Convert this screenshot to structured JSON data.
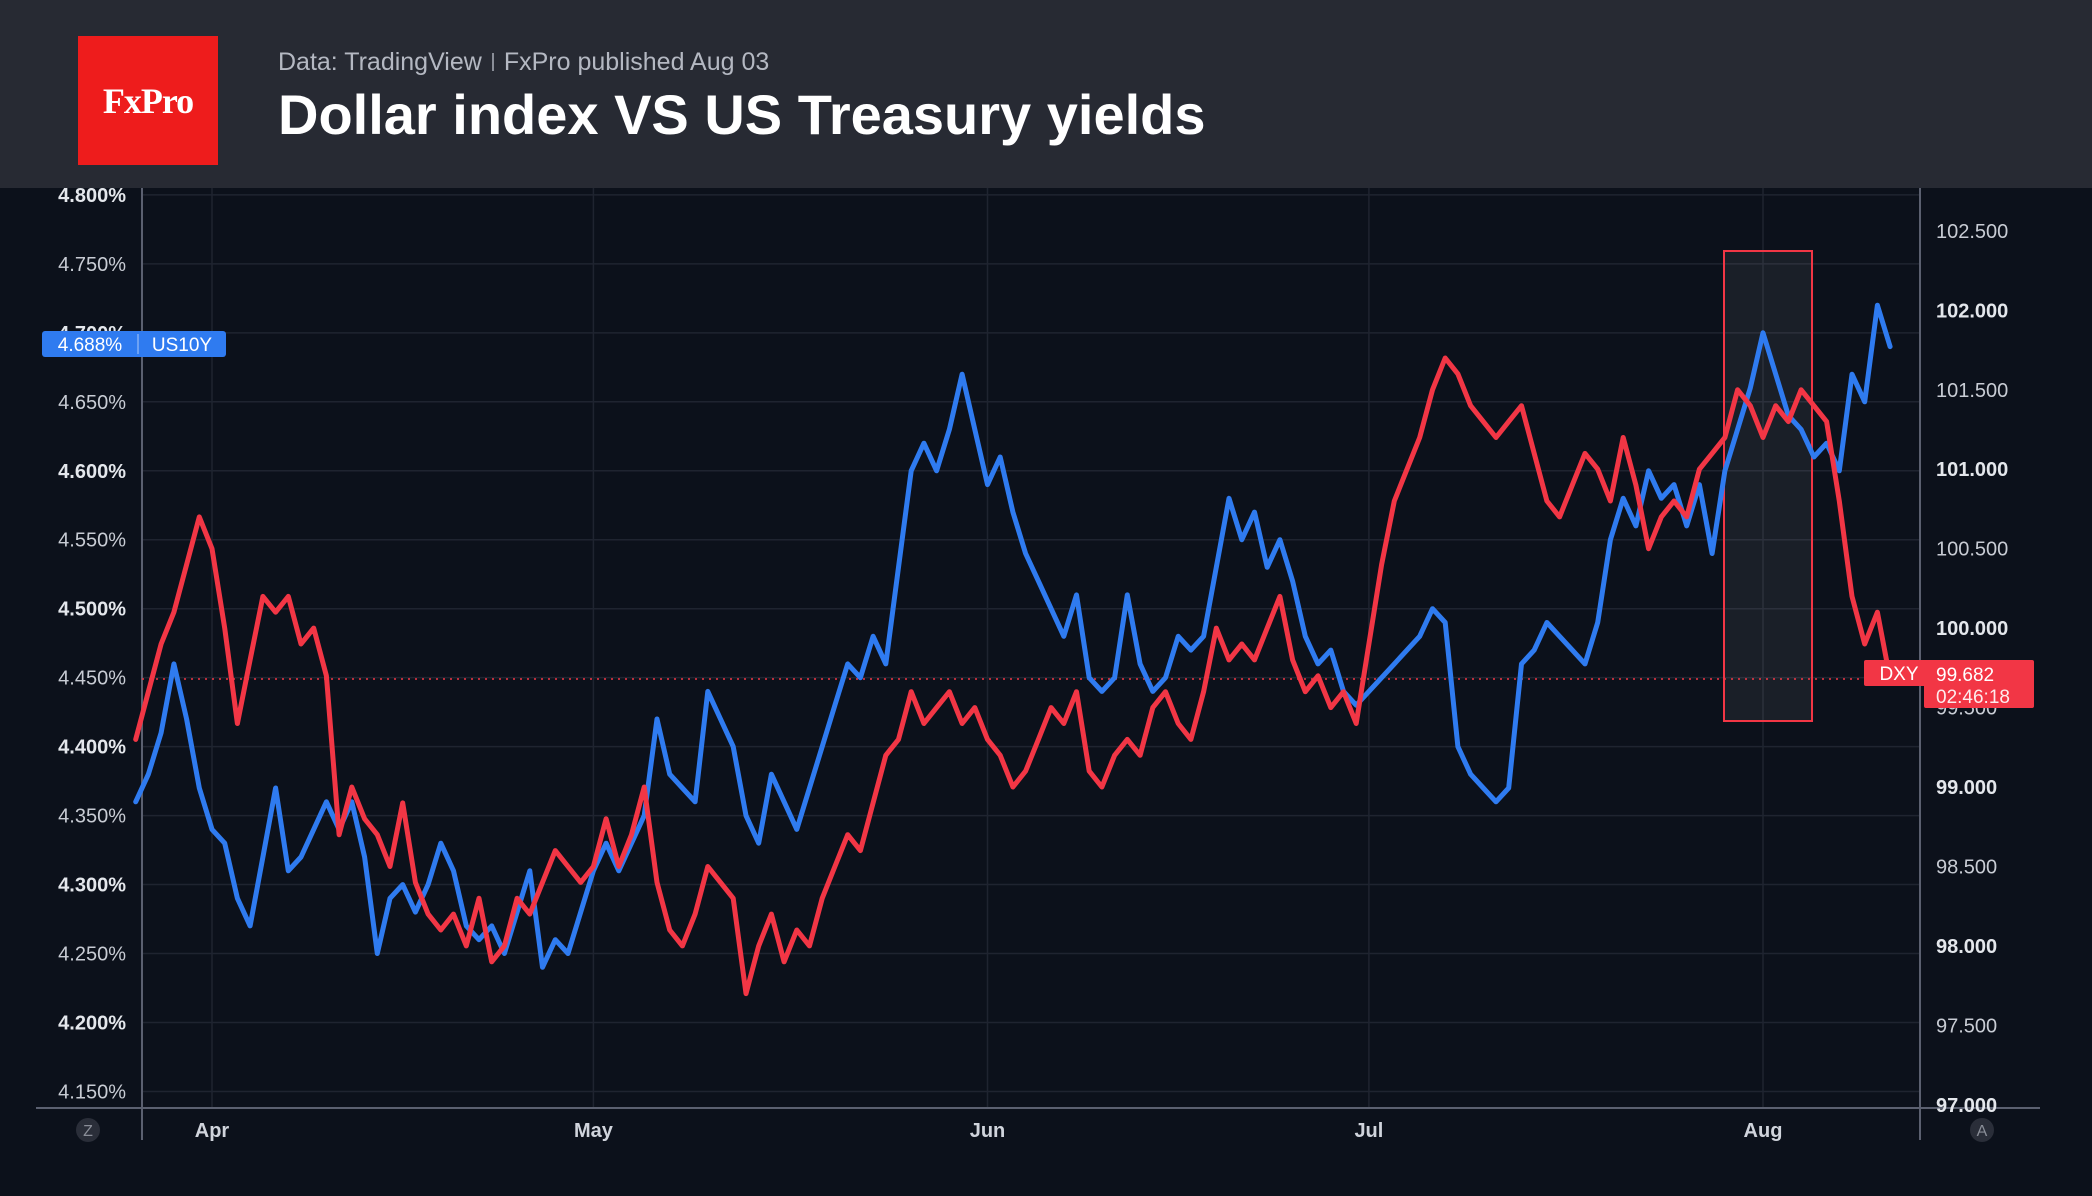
{
  "header": {
    "logo_text": "FxPro",
    "source": "Data: TradingView",
    "published": "FxPro published Aug 03",
    "title": "Dollar index VS US Treasury yields"
  },
  "colors": {
    "us10y": "#2f7bf0",
    "dxy": "#f23645",
    "background": "#0c111b",
    "header": "#272a33",
    "logo": "#ee1c1c"
  },
  "chart_data": {
    "type": "line",
    "x_labels": [
      "Apr",
      "May",
      "Jun",
      "Jul",
      "Aug"
    ],
    "left_axis": {
      "ticks": [
        "4.150%",
        "4.200%",
        "4.250%",
        "4.300%",
        "4.350%",
        "4.400%",
        "4.450%",
        "4.500%",
        "4.550%",
        "4.600%",
        "4.650%",
        "4.700%",
        "4.750%",
        "4.800%"
      ],
      "range": [
        4.138,
        4.805
      ],
      "units": "%"
    },
    "right_axis": {
      "ticks": [
        "97.000",
        "97.500",
        "98.000",
        "98.500",
        "99.000",
        "99.500",
        "100.000",
        "100.500",
        "101.000",
        "101.500",
        "102.000",
        "102.500"
      ],
      "range": [
        96.98,
        102.77
      ]
    },
    "grid": true,
    "series": [
      {
        "name": "US10Y",
        "axis": "left",
        "last_value": "4.688%",
        "points": [
          [
            "Mar 26",
            4.36
          ],
          [
            "Mar 27",
            4.38
          ],
          [
            "Mar 28",
            4.41
          ],
          [
            "Mar 29",
            4.46
          ],
          [
            "Mar 30",
            4.42
          ],
          [
            "Mar 31",
            4.37
          ],
          [
            "Apr 1",
            4.34
          ],
          [
            "Apr 2",
            4.33
          ],
          [
            "Apr 3",
            4.29
          ],
          [
            "Apr 4",
            4.27
          ],
          [
            "Apr 5",
            4.32
          ],
          [
            "Apr 6",
            4.37
          ],
          [
            "Apr 7",
            4.31
          ],
          [
            "Apr 8",
            4.32
          ],
          [
            "Apr 9",
            4.34
          ],
          [
            "Apr 10",
            4.36
          ],
          [
            "Apr 11",
            4.34
          ],
          [
            "Apr 12",
            4.36
          ],
          [
            "Apr 13",
            4.32
          ],
          [
            "Apr 14",
            4.25
          ],
          [
            "Apr 15",
            4.29
          ],
          [
            "Apr 16",
            4.3
          ],
          [
            "Apr 17",
            4.28
          ],
          [
            "Apr 18",
            4.3
          ],
          [
            "Apr 19",
            4.33
          ],
          [
            "Apr 20",
            4.31
          ],
          [
            "Apr 21",
            4.27
          ],
          [
            "Apr 22",
            4.26
          ],
          [
            "Apr 23",
            4.27
          ],
          [
            "Apr 24",
            4.25
          ],
          [
            "Apr 25",
            4.28
          ],
          [
            "Apr 26",
            4.31
          ],
          [
            "Apr 27",
            4.24
          ],
          [
            "Apr 28",
            4.26
          ],
          [
            "Apr 29",
            4.25
          ],
          [
            "Apr 30",
            4.28
          ],
          [
            "May 1",
            4.31
          ],
          [
            "May 2",
            4.33
          ],
          [
            "May 3",
            4.31
          ],
          [
            "May 4",
            4.33
          ],
          [
            "May 5",
            4.35
          ],
          [
            "May 6",
            4.42
          ],
          [
            "May 7",
            4.38
          ],
          [
            "May 8",
            4.37
          ],
          [
            "May 9",
            4.36
          ],
          [
            "May 10",
            4.44
          ],
          [
            "May 11",
            4.42
          ],
          [
            "May 12",
            4.4
          ],
          [
            "May 13",
            4.35
          ],
          [
            "May 14",
            4.33
          ],
          [
            "May 15",
            4.38
          ],
          [
            "May 16",
            4.36
          ],
          [
            "May 17",
            4.34
          ],
          [
            "May 18",
            4.37
          ],
          [
            "May 19",
            4.4
          ],
          [
            "May 20",
            4.43
          ],
          [
            "May 21",
            4.46
          ],
          [
            "May 22",
            4.45
          ],
          [
            "May 23",
            4.48
          ],
          [
            "May 24",
            4.46
          ],
          [
            "May 25",
            4.53
          ],
          [
            "May 26",
            4.6
          ],
          [
            "May 27",
            4.62
          ],
          [
            "May 28",
            4.6
          ],
          [
            "May 29",
            4.63
          ],
          [
            "May 30",
            4.67
          ],
          [
            "May 31",
            4.63
          ],
          [
            "Jun 1",
            4.59
          ],
          [
            "Jun 2",
            4.61
          ],
          [
            "Jun 3",
            4.57
          ],
          [
            "Jun 4",
            4.54
          ],
          [
            "Jun 5",
            4.52
          ],
          [
            "Jun 6",
            4.5
          ],
          [
            "Jun 7",
            4.48
          ],
          [
            "Jun 8",
            4.51
          ],
          [
            "Jun 9",
            4.45
          ],
          [
            "Jun 10",
            4.44
          ],
          [
            "Jun 11",
            4.45
          ],
          [
            "Jun 12",
            4.51
          ],
          [
            "Jun 13",
            4.46
          ],
          [
            "Jun 14",
            4.44
          ],
          [
            "Jun 15",
            4.45
          ],
          [
            "Jun 16",
            4.48
          ],
          [
            "Jun 17",
            4.47
          ],
          [
            "Jun 18",
            4.48
          ],
          [
            "Jun 19",
            4.53
          ],
          [
            "Jun 20",
            4.58
          ],
          [
            "Jun 21",
            4.55
          ],
          [
            "Jun 22",
            4.57
          ],
          [
            "Jun 23",
            4.53
          ],
          [
            "Jun 24",
            4.55
          ],
          [
            "Jun 25",
            4.52
          ],
          [
            "Jun 26",
            4.48
          ],
          [
            "Jun 27",
            4.46
          ],
          [
            "Jun 28",
            4.47
          ],
          [
            "Jun 29",
            4.44
          ],
          [
            "Jun 30",
            4.43
          ],
          [
            "Jul 1",
            4.44
          ],
          [
            "Jul 2",
            4.45
          ],
          [
            "Jul 3",
            4.46
          ],
          [
            "Jul 4",
            4.47
          ],
          [
            "Jul 5",
            4.48
          ],
          [
            "Jul 6",
            4.5
          ],
          [
            "Jul 7",
            4.49
          ],
          [
            "Jul 8",
            4.4
          ],
          [
            "Jul 9",
            4.38
          ],
          [
            "Jul 10",
            4.37
          ],
          [
            "Jul 11",
            4.36
          ],
          [
            "Jul 12",
            4.37
          ],
          [
            "Jul 13",
            4.46
          ],
          [
            "Jul 14",
            4.47
          ],
          [
            "Jul 15",
            4.49
          ],
          [
            "Jul 16",
            4.48
          ],
          [
            "Jul 17",
            4.47
          ],
          [
            "Jul 18",
            4.46
          ],
          [
            "Jul 19",
            4.49
          ],
          [
            "Jul 20",
            4.55
          ],
          [
            "Jul 21",
            4.58
          ],
          [
            "Jul 22",
            4.56
          ],
          [
            "Jul 23",
            4.6
          ],
          [
            "Jul 24",
            4.58
          ],
          [
            "Jul 25",
            4.59
          ],
          [
            "Jul 26",
            4.56
          ],
          [
            "Jul 27",
            4.59
          ],
          [
            "Jul 28",
            4.54
          ],
          [
            "Jul 29",
            4.6
          ],
          [
            "Jul 30",
            4.63
          ],
          [
            "Jul 31",
            4.66
          ],
          [
            "Aug 1",
            4.7
          ],
          [
            "Aug 2",
            4.67
          ],
          [
            "Aug 3",
            4.64
          ],
          [
            "Aug 4",
            4.63
          ],
          [
            "Aug 5",
            4.61
          ],
          [
            "Aug 6",
            4.62
          ],
          [
            "Aug 7",
            4.6
          ],
          [
            "Aug 8",
            4.67
          ],
          [
            "Aug 9",
            4.65
          ],
          [
            "Aug 10",
            4.72
          ],
          [
            "Aug 11",
            4.69
          ]
        ]
      },
      {
        "name": "DXY",
        "axis": "right",
        "last_value": "99.682",
        "countdown": "02:46:18",
        "points": [
          [
            "Mar 26",
            99.3
          ],
          [
            "Mar 27",
            99.6
          ],
          [
            "Mar 28",
            99.9
          ],
          [
            "Mar 29",
            100.1
          ],
          [
            "Mar 30",
            100.4
          ],
          [
            "Mar 31",
            100.7
          ],
          [
            "Apr 1",
            100.5
          ],
          [
            "Apr 2",
            100.0
          ],
          [
            "Apr 3",
            99.4
          ],
          [
            "Apr 4",
            99.8
          ],
          [
            "Apr 5",
            100.2
          ],
          [
            "Apr 6",
            100.1
          ],
          [
            "Apr 7",
            100.2
          ],
          [
            "Apr 8",
            99.9
          ],
          [
            "Apr 9",
            100.0
          ],
          [
            "Apr 10",
            99.7
          ],
          [
            "Apr 11",
            98.7
          ],
          [
            "Apr 12",
            99.0
          ],
          [
            "Apr 13",
            98.8
          ],
          [
            "Apr 14",
            98.7
          ],
          [
            "Apr 15",
            98.5
          ],
          [
            "Apr 16",
            98.9
          ],
          [
            "Apr 17",
            98.4
          ],
          [
            "Apr 18",
            98.2
          ],
          [
            "Apr 19",
            98.1
          ],
          [
            "Apr 20",
            98.2
          ],
          [
            "Apr 21",
            98.0
          ],
          [
            "Apr 22",
            98.3
          ],
          [
            "Apr 23",
            97.9
          ],
          [
            "Apr 24",
            98.0
          ],
          [
            "Apr 25",
            98.3
          ],
          [
            "Apr 26",
            98.2
          ],
          [
            "Apr 27",
            98.4
          ],
          [
            "Apr 28",
            98.6
          ],
          [
            "Apr 29",
            98.5
          ],
          [
            "Apr 30",
            98.4
          ],
          [
            "May 1",
            98.5
          ],
          [
            "May 2",
            98.8
          ],
          [
            "May 3",
            98.5
          ],
          [
            "May 4",
            98.7
          ],
          [
            "May 5",
            99.0
          ],
          [
            "May 6",
            98.4
          ],
          [
            "May 7",
            98.1
          ],
          [
            "May 8",
            98.0
          ],
          [
            "May 9",
            98.2
          ],
          [
            "May 10",
            98.5
          ],
          [
            "May 11",
            98.4
          ],
          [
            "May 12",
            98.3
          ],
          [
            "May 13",
            97.7
          ],
          [
            "May 14",
            98.0
          ],
          [
            "May 15",
            98.2
          ],
          [
            "May 16",
            97.9
          ],
          [
            "May 17",
            98.1
          ],
          [
            "May 18",
            98.0
          ],
          [
            "May 19",
            98.3
          ],
          [
            "May 20",
            98.5
          ],
          [
            "May 21",
            98.7
          ],
          [
            "May 22",
            98.6
          ],
          [
            "May 23",
            98.9
          ],
          [
            "May 24",
            99.2
          ],
          [
            "May 25",
            99.3
          ],
          [
            "May 26",
            99.6
          ],
          [
            "May 27",
            99.4
          ],
          [
            "May 28",
            99.5
          ],
          [
            "May 29",
            99.6
          ],
          [
            "May 30",
            99.4
          ],
          [
            "May 31",
            99.5
          ],
          [
            "Jun 1",
            99.3
          ],
          [
            "Jun 2",
            99.2
          ],
          [
            "Jun 3",
            99.0
          ],
          [
            "Jun 4",
            99.1
          ],
          [
            "Jun 5",
            99.3
          ],
          [
            "Jun 6",
            99.5
          ],
          [
            "Jun 7",
            99.4
          ],
          [
            "Jun 8",
            99.6
          ],
          [
            "Jun 9",
            99.1
          ],
          [
            "Jun 10",
            99.0
          ],
          [
            "Jun 11",
            99.2
          ],
          [
            "Jun 12",
            99.3
          ],
          [
            "Jun 13",
            99.2
          ],
          [
            "Jun 14",
            99.5
          ],
          [
            "Jun 15",
            99.6
          ],
          [
            "Jun 16",
            99.4
          ],
          [
            "Jun 17",
            99.3
          ],
          [
            "Jun 18",
            99.6
          ],
          [
            "Jun 19",
            100.0
          ],
          [
            "Jun 20",
            99.8
          ],
          [
            "Jun 21",
            99.9
          ],
          [
            "Jun 22",
            99.8
          ],
          [
            "Jun 23",
            100.0
          ],
          [
            "Jun 24",
            100.2
          ],
          [
            "Jun 25",
            99.8
          ],
          [
            "Jun 26",
            99.6
          ],
          [
            "Jun 27",
            99.7
          ],
          [
            "Jun 28",
            99.5
          ],
          [
            "Jun 29",
            99.6
          ],
          [
            "Jun 30",
            99.4
          ],
          [
            "Jul 1",
            99.9
          ],
          [
            "Jul 2",
            100.4
          ],
          [
            "Jul 3",
            100.8
          ],
          [
            "Jul 4",
            101.0
          ],
          [
            "Jul 5",
            101.2
          ],
          [
            "Jul 6",
            101.5
          ],
          [
            "Jul 7",
            101.7
          ],
          [
            "Jul 8",
            101.6
          ],
          [
            "Jul 9",
            101.4
          ],
          [
            "Jul 10",
            101.3
          ],
          [
            "Jul 11",
            101.2
          ],
          [
            "Jul 12",
            101.3
          ],
          [
            "Jul 13",
            101.4
          ],
          [
            "Jul 14",
            101.1
          ],
          [
            "Jul 15",
            100.8
          ],
          [
            "Jul 16",
            100.7
          ],
          [
            "Jul 17",
            100.9
          ],
          [
            "Jul 18",
            101.1
          ],
          [
            "Jul 19",
            101.0
          ],
          [
            "Jul 20",
            100.8
          ],
          [
            "Jul 21",
            101.2
          ],
          [
            "Jul 22",
            100.9
          ],
          [
            "Jul 23",
            100.5
          ],
          [
            "Jul 24",
            100.7
          ],
          [
            "Jul 25",
            100.8
          ],
          [
            "Jul 26",
            100.7
          ],
          [
            "Jul 27",
            101.0
          ],
          [
            "Jul 28",
            101.1
          ],
          [
            "Jul 29",
            101.2
          ],
          [
            "Jul 30",
            101.5
          ],
          [
            "Jul 31",
            101.4
          ],
          [
            "Aug 1",
            101.2
          ],
          [
            "Aug 2",
            101.4
          ],
          [
            "Aug 3",
            101.3
          ],
          [
            "Aug 4",
            101.5
          ],
          [
            "Aug 5",
            101.4
          ],
          [
            "Aug 6",
            101.3
          ],
          [
            "Aug 7",
            100.8
          ],
          [
            "Aug 8",
            100.2
          ],
          [
            "Aug 9",
            99.9
          ],
          [
            "Aug 10",
            100.1
          ],
          [
            "Aug 11",
            99.68
          ]
        ]
      }
    ]
  },
  "axis_buttons": {
    "left": "Z",
    "right": "A"
  }
}
